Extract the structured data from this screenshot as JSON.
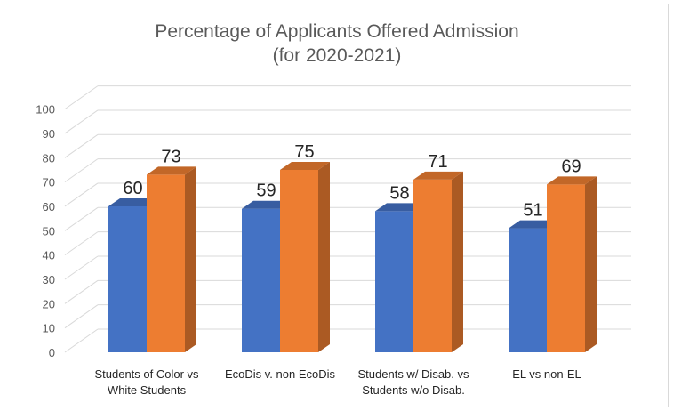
{
  "chart_data": {
    "type": "bar",
    "title": "Percentage of Applicants Offered Admission",
    "subtitle": "(for 2020-2021)",
    "categories": [
      [
        "Students of Color vs",
        "White Students"
      ],
      [
        "EcoDis v. non EcoDis"
      ],
      [
        "Students w/ Disab. vs",
        "Students w/o Disab."
      ],
      [
        "EL vs non-EL"
      ]
    ],
    "series": [
      {
        "values": [
          60,
          59,
          58,
          51
        ],
        "color": "#4472C4"
      },
      {
        "values": [
          73,
          75,
          71,
          69
        ],
        "color": "#ED7D31"
      }
    ],
    "ylim": [
      0,
      100
    ],
    "yticks": [
      0,
      10,
      20,
      30,
      40,
      50,
      60,
      70,
      80,
      90,
      100
    ],
    "grid": true,
    "style": "3d-clustered-column",
    "data_labels": true
  }
}
